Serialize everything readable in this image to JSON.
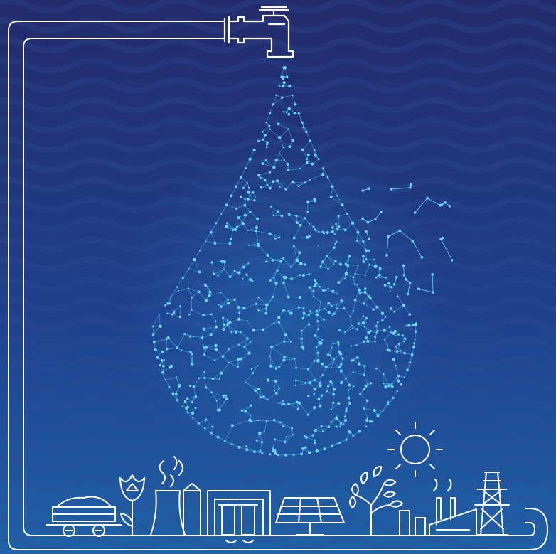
{
  "illustration": {
    "palette": {
      "background_top": "#232b6b",
      "background_bottom": "#1f5fa6",
      "wave_line": "#2e4f96",
      "outline": "#ffffff",
      "network_line": "#3fb3e6",
      "network_node": "#6fd9ff"
    },
    "elements": [
      "background-waves",
      "faucet-pipe",
      "water-tap",
      "network-water-drop",
      "dispersing-network-fragments",
      "sun-icon",
      "coal-wagon-icon",
      "tulip-plant-icon",
      "cooling-tower-icon",
      "dam-icon",
      "solar-panel-icon",
      "tree-icon",
      "factory-icon",
      "power-pylon-icon"
    ]
  }
}
